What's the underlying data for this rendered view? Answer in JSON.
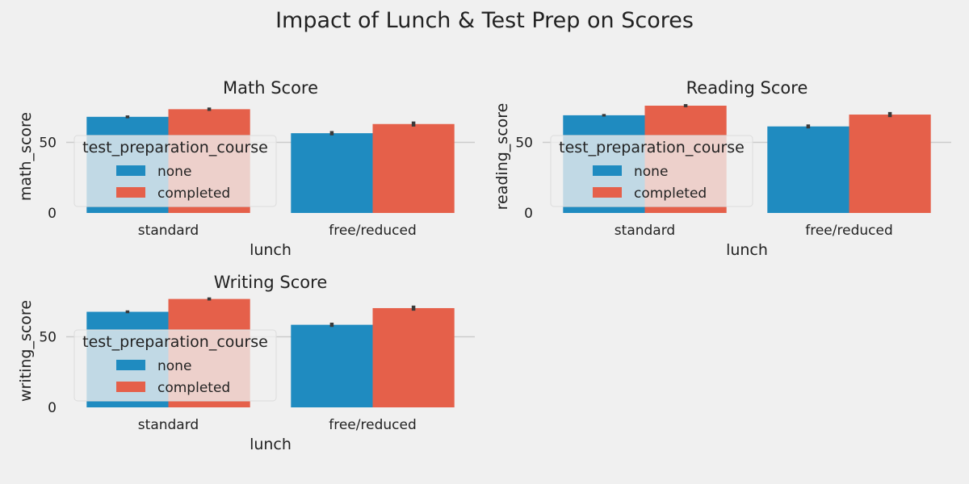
{
  "title": "Impact of Lunch & Test Prep on Scores",
  "colors": {
    "background": "#f0f0f0",
    "none": "#1f8bc0",
    "completed": "#e5604a",
    "grid": "#cbcbcb",
    "errorbar": "#3a3a3a",
    "text": "#222222"
  },
  "chart_data": [
    {
      "type": "bar",
      "title": "Math Score",
      "xlabel": "lunch",
      "ylabel": "math_score",
      "categories": [
        "standard",
        "free/reduced"
      ],
      "yticks": [
        0,
        50
      ],
      "ylim": [
        0,
        80
      ],
      "grid": "horizontal",
      "legend": {
        "title": "test_preparation_course",
        "placement": "center-left"
      },
      "series": [
        {
          "name": "none",
          "values": [
            68.1,
            56.5
          ],
          "err": [
            1.0,
            1.5
          ]
        },
        {
          "name": "completed",
          "values": [
            73.5,
            63.0
          ],
          "err": [
            1.2,
            1.8
          ]
        }
      ]
    },
    {
      "type": "bar",
      "title": "Reading Score",
      "xlabel": "lunch",
      "ylabel": "reading_score",
      "categories": [
        "standard",
        "free/reduced"
      ],
      "yticks": [
        0,
        50
      ],
      "ylim": [
        0,
        80
      ],
      "grid": "horizontal",
      "legend": {
        "title": "test_preparation_course",
        "placement": "center-left"
      },
      "series": [
        {
          "name": "none",
          "values": [
            69.2,
            61.3
          ],
          "err": [
            0.9,
            1.4
          ]
        },
        {
          "name": "completed",
          "values": [
            76.0,
            69.7
          ],
          "err": [
            1.1,
            1.8
          ]
        }
      ]
    },
    {
      "type": "bar",
      "title": "Writing Score",
      "xlabel": "lunch",
      "ylabel": "writing_score",
      "categories": [
        "standard",
        "free/reduced"
      ],
      "yticks": [
        0,
        50
      ],
      "ylim": [
        0,
        80
      ],
      "grid": "horizontal",
      "legend": {
        "title": "test_preparation_course",
        "placement": "center-left"
      },
      "series": [
        {
          "name": "none",
          "values": [
            67.7,
            58.5
          ],
          "err": [
            1.0,
            1.5
          ]
        },
        {
          "name": "completed",
          "values": [
            76.8,
            70.3
          ],
          "err": [
            1.1,
            1.8
          ]
        }
      ]
    }
  ]
}
